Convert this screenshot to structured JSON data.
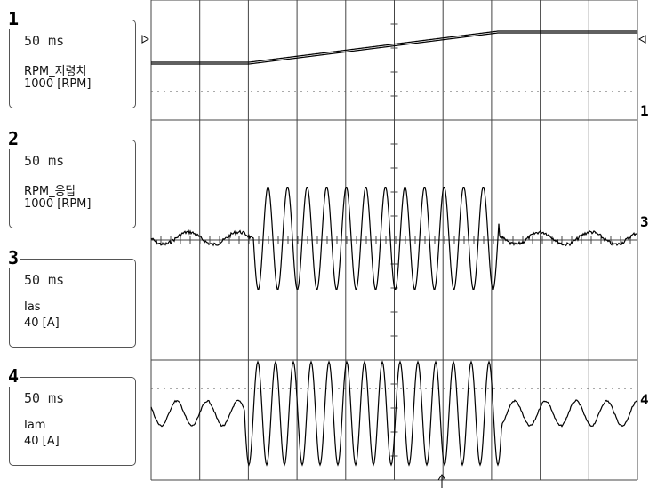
{
  "channels": [
    {
      "number": "1",
      "timebase": "50 ms",
      "name": "RPM_지령치",
      "scale": "1000 [RPM]"
    },
    {
      "number": "2",
      "timebase": "50 ms",
      "name": "RPM_응답",
      "scale": "1000 [RPM]"
    },
    {
      "number": "3",
      "timebase": "50 ms",
      "name": "Ias",
      "scale": "40 [A]"
    },
    {
      "number": "4",
      "timebase": "50 ms",
      "name": "Iam",
      "scale": "40 [A]"
    }
  ],
  "markers": [
    "1",
    "3",
    "4"
  ]
}
